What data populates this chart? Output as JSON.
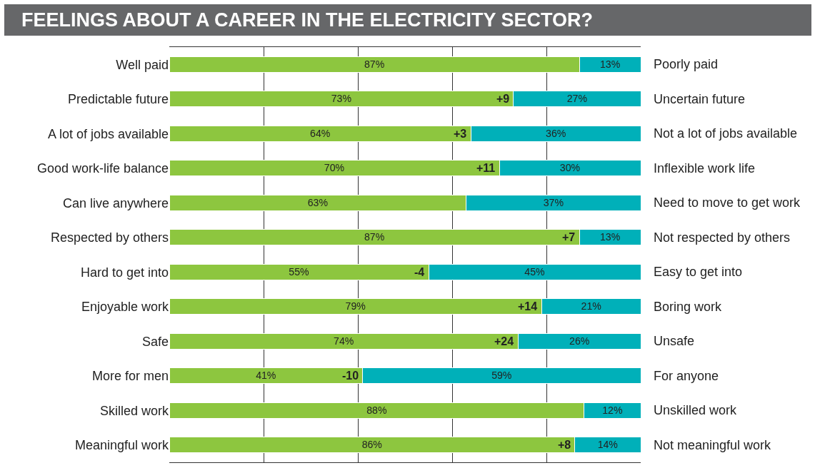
{
  "chart_data": {
    "type": "bar",
    "orientation": "horizontal",
    "stacked": true,
    "title": "FEELINGS ABOUT A CAREER IN THE ELECTRICITY SECTOR?",
    "categories": [
      "Well paid",
      "Predictable future",
      "A lot of jobs available",
      "Good work-life balance",
      "Can live anywhere",
      "Respected by others",
      "Hard to get into",
      "Enjoyable work",
      "Safe",
      "More for men",
      "Skilled work",
      "Meaningful work"
    ],
    "series": [
      {
        "color": "#8dc63f",
        "values": [
          87,
          73,
          64,
          70,
          63,
          87,
          55,
          79,
          74,
          41,
          88,
          86
        ],
        "value_labels": [
          "87%",
          "73%",
          "64%",
          "70%",
          "63%",
          "87%",
          "55%",
          "79%",
          "74%",
          "41%",
          "88%",
          "86%"
        ]
      },
      {
        "color": "#00b0b9",
        "values": [
          13,
          27,
          36,
          30,
          37,
          13,
          45,
          21,
          26,
          59,
          12,
          14
        ],
        "value_labels": [
          "13%",
          "27%",
          "36%",
          "30%",
          "37%",
          "13%",
          "45%",
          "21%",
          "26%",
          "59%",
          "12%",
          "14%"
        ]
      }
    ],
    "xlim": [
      0,
      100
    ],
    "xticks": [
      {
        "value": 20,
        "label": null
      },
      {
        "value": 40,
        "label": null
      },
      {
        "value": 60,
        "label": null
      },
      {
        "value": 80,
        "label": null
      }
    ],
    "grid": "x",
    "tick_labels": "y",
    "annotations": [
      {
        "text": "Poorly paid",
        "x": 100,
        "y": "Well paid"
      },
      {
        "text": "Uncertain future",
        "x": 100,
        "y": "Predictable future"
      },
      {
        "text": "Not a lot of jobs available",
        "x": 100,
        "y": "A lot of jobs available"
      },
      {
        "text": "Inflexible work life",
        "x": 100,
        "y": "Good work-life balance"
      },
      {
        "text": "Need to move to get work",
        "x": 100,
        "y": "Can live anywhere"
      },
      {
        "text": "Not respected by others",
        "x": 100,
        "y": "Respected by others"
      },
      {
        "text": "Easy to get into",
        "x": 100,
        "y": "Hard to get into"
      },
      {
        "text": "Boring work",
        "x": 100,
        "y": "Enjoyable work"
      },
      {
        "text": "Unsafe",
        "x": 100,
        "y": "Safe"
      },
      {
        "text": "For anyone",
        "x": 100,
        "y": "More for men"
      },
      {
        "text": "Unskilled work",
        "x": 100,
        "y": "Skilled work"
      },
      {
        "text": "Not meaningful work",
        "x": 100,
        "y": "Meaningful work"
      },
      {
        "text": "+9",
        "x": 73,
        "y": "Predictable future"
      },
      {
        "text": "+3",
        "x": 64,
        "y": "A lot of jobs available"
      },
      {
        "text": "+11",
        "x": 70,
        "y": "Good work-life balance"
      },
      {
        "text": "+7",
        "x": 87,
        "y": "Respected by others"
      },
      {
        "text": "-4",
        "x": 55,
        "y": "Hard to get into"
      },
      {
        "text": "+14",
        "x": 79,
        "y": "Enjoyable work"
      },
      {
        "text": "+24",
        "x": 74,
        "y": "Safe"
      },
      {
        "text": "-10",
        "x": 41,
        "y": "More for men"
      },
      {
        "text": "+8",
        "x": 86,
        "y": "Meaningful work"
      }
    ]
  }
}
